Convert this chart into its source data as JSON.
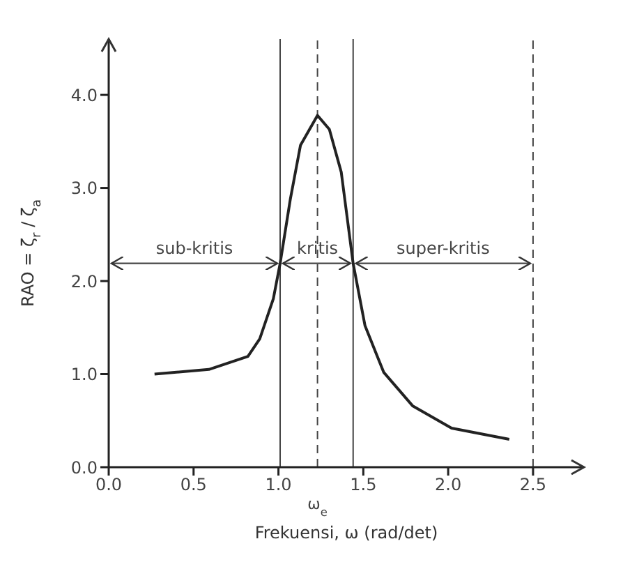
{
  "chart_data": {
    "type": "line",
    "xlabel": "Frekuensi, ω (rad/det)",
    "ylabel": "RAO = ζ$_{r}$ / ζ$_{a}$",
    "x": [
      0.27,
      0.59,
      0.82,
      0.89,
      0.97,
      1.01,
      1.07,
      1.13,
      1.23,
      1.3,
      1.37,
      1.44,
      1.51,
      1.62,
      1.79,
      2.02,
      2.36
    ],
    "series": [
      {
        "color": "#222222",
        "values": [
          1.0,
          1.05,
          1.19,
          1.38,
          1.81,
          2.19,
          2.88,
          3.46,
          3.78,
          3.63,
          3.17,
          2.19,
          1.52,
          1.02,
          0.66,
          0.42,
          0.3
        ]
      }
    ],
    "xlim": [
      0,
      2.8
    ],
    "ylim": [
      0,
      4.6
    ],
    "xticks": [
      {
        "value": 0,
        "label": "0.0"
      },
      {
        "value": 0.5,
        "label": "0.5"
      },
      {
        "value": 1,
        "label": "1.0"
      },
      {
        "value": 1.5,
        "label": "1.5"
      },
      {
        "value": 2,
        "label": "2.0"
      },
      {
        "value": 2.5,
        "label": "2.5"
      }
    ],
    "yticks": [
      {
        "value": 0,
        "label": "0.0"
      },
      {
        "value": 1,
        "label": "1.0"
      },
      {
        "value": 2,
        "label": "2.0"
      },
      {
        "value": 3,
        "label": "3.0"
      },
      {
        "value": 4,
        "label": "4.0"
      }
    ],
    "grid": false,
    "legend": false,
    "marker": "none",
    "line_style": "solid",
    "ref_lines": [
      {
        "axis": "x",
        "value": 1.01,
        "line_style": "solid",
        "color": "#444444"
      },
      {
        "axis": "x",
        "value": 1.23,
        "label": "ω$_{e}$",
        "line_style": "dashed",
        "color": "#444444"
      },
      {
        "axis": "x",
        "value": 1.44,
        "line_style": "solid",
        "color": "#444444"
      },
      {
        "axis": "x",
        "value": 2.5,
        "line_style": "dashed",
        "color": "#444444"
      }
    ],
    "annotations": [
      "sub-kritis",
      {
        "text": "kritis",
        "x": 1.23,
        "y": 2.19
      },
      "super-kritis"
    ]
  }
}
